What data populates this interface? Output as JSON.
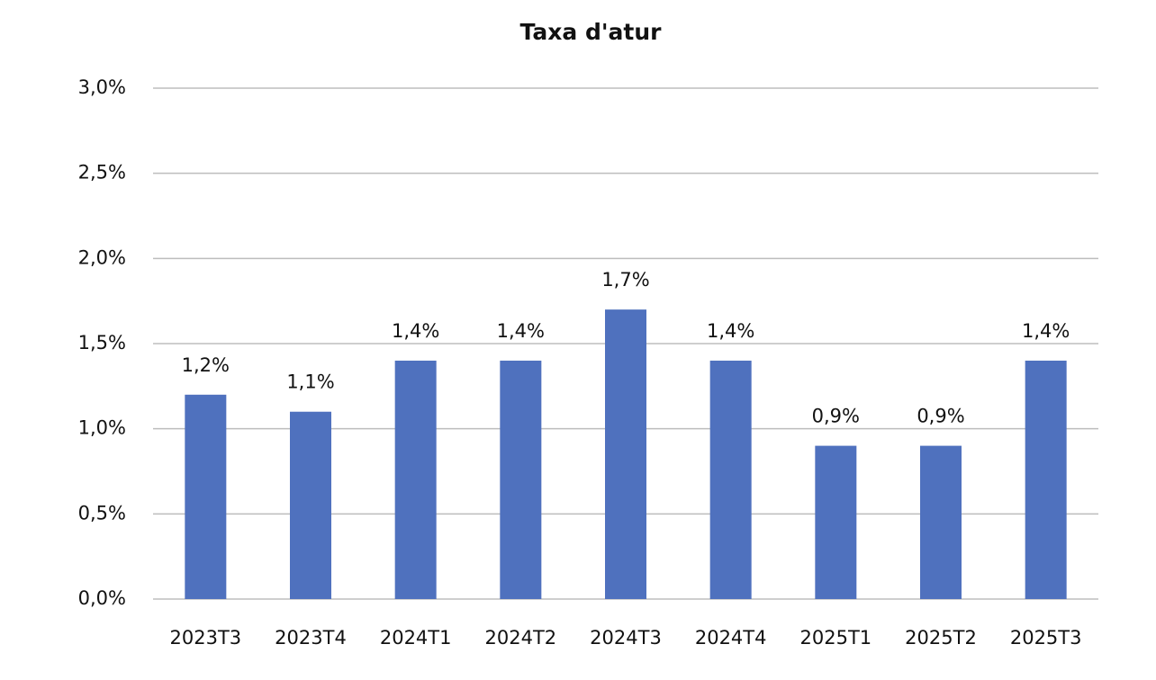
{
  "chart_data": {
    "type": "bar",
    "title": "Taxa d'atur",
    "categories": [
      "2023T3",
      "2023T4",
      "2024T1",
      "2024T2",
      "2024T3",
      "2024T4",
      "2025T1",
      "2025T2",
      "2025T3"
    ],
    "values": [
      1.2,
      1.1,
      1.4,
      1.4,
      1.7,
      1.4,
      0.9,
      0.9,
      1.4
    ],
    "value_labels": [
      "1,2%",
      "1,1%",
      "1,4%",
      "1,4%",
      "1,7%",
      "1,4%",
      "0,9%",
      "0,9%",
      "1,4%"
    ],
    "color": "#4f71be",
    "ylim": [
      0,
      3
    ],
    "yticks": [
      {
        "value": 0,
        "label": "0,0%"
      },
      {
        "value": 0.5,
        "label": "0,5%"
      },
      {
        "value": 1,
        "label": "1,0%"
      },
      {
        "value": 1.5,
        "label": "1,5%"
      },
      {
        "value": 2,
        "label": "2,0%"
      },
      {
        "value": 2.5,
        "label": "2,5%"
      },
      {
        "value": 3,
        "label": "3,0%"
      }
    ],
    "grid": true
  }
}
